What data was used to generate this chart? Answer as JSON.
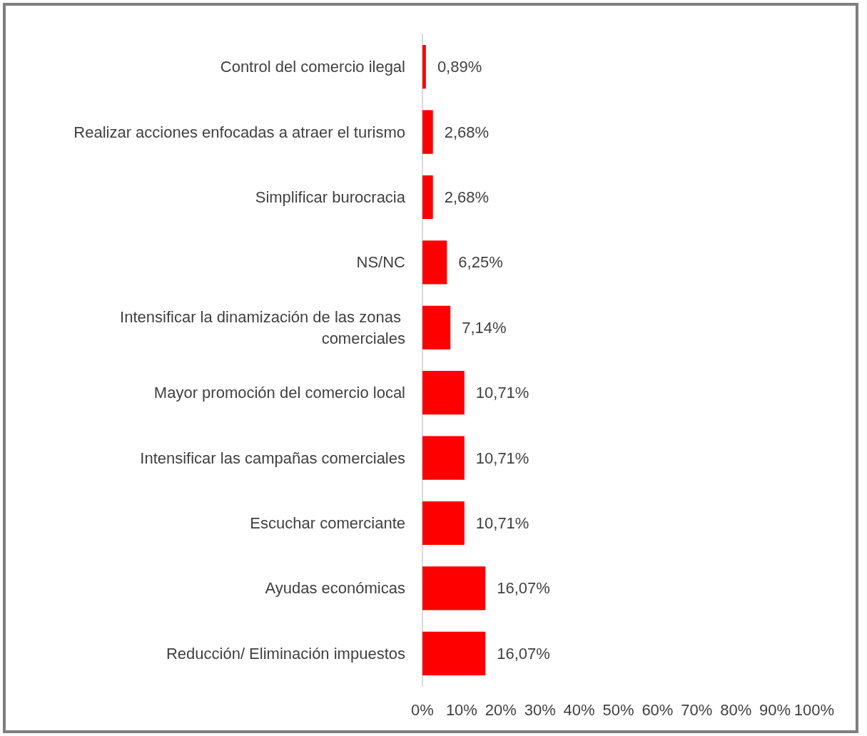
{
  "chart_data": {
    "type": "bar",
    "orientation": "horizontal",
    "categories": [
      "Control del comercio ilegal",
      "Realizar acciones enfocadas a atraer el turismo",
      "Simplificar burocracia",
      "NS/NC",
      "Intensificar la dinamización de las zonas comerciales",
      "Mayor promoción del comercio local",
      "Intensificar las campañas comerciales",
      "Escuchar comerciante",
      "Ayudas económicas",
      "Reducción/ Eliminación impuestos"
    ],
    "values": [
      0.89,
      2.68,
      2.68,
      6.25,
      7.14,
      10.71,
      10.71,
      10.71,
      16.07,
      16.07
    ],
    "value_labels": [
      "0,89%",
      "2,68%",
      "2,68%",
      "6,25%",
      "7,14%",
      "10,71%",
      "10,71%",
      "10,71%",
      "16,07%",
      "16,07%"
    ],
    "color": "#ff0000",
    "xlim": [
      0,
      100
    ],
    "xticks": [
      {
        "value": 0,
        "label": "0%"
      },
      {
        "value": 10,
        "label": "10%"
      },
      {
        "value": 20,
        "label": "20%"
      },
      {
        "value": 30,
        "label": "30%"
      },
      {
        "value": 40,
        "label": "40%"
      },
      {
        "value": 50,
        "label": "50%"
      },
      {
        "value": 60,
        "label": "60%"
      },
      {
        "value": 70,
        "label": "70%"
      },
      {
        "value": 80,
        "label": "80%"
      },
      {
        "value": 90,
        "label": "90%"
      },
      {
        "value": 100,
        "label": "100%"
      }
    ],
    "grid": false
  }
}
